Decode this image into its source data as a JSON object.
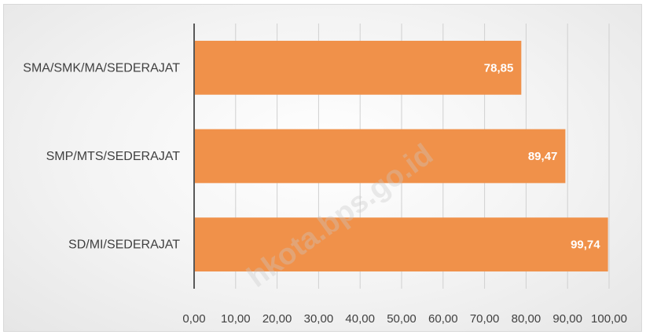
{
  "colors": {
    "bar": "#f0914a",
    "grid": "#d0d0d0",
    "axis": "#595959",
    "text": "#404040",
    "watermark": "#c9c9c9"
  },
  "watermark_text": "hkota.bps.go.id",
  "chart_data": {
    "type": "bar",
    "orientation": "horizontal",
    "title": "",
    "xlabel": "",
    "ylabel": "",
    "categories": [
      "SD/MI/SEDERAJAT",
      "SMP/MTS/SEDERAJAT",
      "SMA/SMK/MA/SEDERAJAT"
    ],
    "values": [
      99.74,
      89.47,
      78.85
    ],
    "data_labels": [
      "99,74",
      "89,47",
      "78,85"
    ],
    "xlim": [
      0,
      100
    ],
    "x_ticks": [
      "0,00",
      "10,00",
      "20,00",
      "30,00",
      "40,00",
      "50,00",
      "60,00",
      "70,00",
      "80,00",
      "90,00",
      "100,00"
    ],
    "grid": true,
    "legend": "none"
  }
}
